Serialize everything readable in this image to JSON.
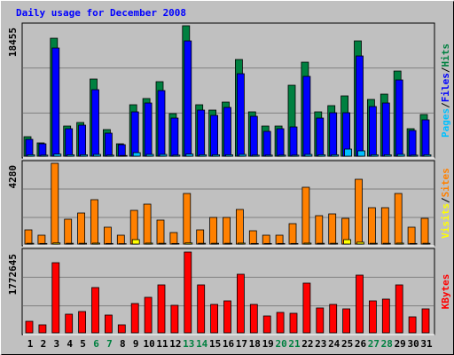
{
  "title": "Daily usage for December 2008",
  "chart_data": [
    {
      "type": "bar",
      "ylim": [
        0,
        18455
      ],
      "yticks": [
        18455
      ],
      "series": [
        {
          "name": "Hits",
          "color": "#008040",
          "values": [
            2761,
            1883,
            16692,
            4267,
            4769,
            10919,
            3765,
            1757,
            7279,
            8158,
            10542,
            6024,
            18455,
            7279,
            6526,
            7656,
            13680,
            6275,
            4267,
            4267,
            10040,
            13303,
            6275,
            7154,
            8534,
            16315,
            8032,
            8785,
            12048,
            3891,
            5899
          ]
        },
        {
          "name": "Files",
          "color": "#0000ff",
          "values": [
            2385,
            1757,
            15311,
            3891,
            4393,
            9413,
            3263,
            1632,
            6275,
            7530,
            9287,
            5397,
            16315,
            6526,
            5773,
            6903,
            11672,
            5648,
            3514,
            3891,
            4142,
            11295,
            5397,
            6150,
            6150,
            14182,
            7028,
            7530,
            10793,
            3640,
            5146
          ]
        },
        {
          "name": "Pages",
          "color": "#00c0ff",
          "values": [
            200,
            150,
            300,
            200,
            200,
            250,
            150,
            100,
            502,
            250,
            250,
            150,
            300,
            200,
            200,
            200,
            250,
            150,
            150,
            150,
            150,
            250,
            200,
            200,
            1004,
            753,
            200,
            200,
            250,
            150,
            200
          ]
        }
      ]
    },
    {
      "type": "bar",
      "ylim": [
        0,
        4280
      ],
      "yticks": [
        4280
      ],
      "series": [
        {
          "name": "Sites",
          "color": "#ff8000",
          "values": [
            752,
            470,
            4280,
            1317,
            1646,
            2352,
            894,
            470,
            1787,
            2116,
            1270,
            611,
            2681,
            752,
            1411,
            1411,
            1834,
            705,
            470,
            470,
            1082,
            3010,
            1505,
            1599,
            1364,
            3433,
            1928,
            1928,
            2681,
            894,
            1364
          ]
        },
        {
          "name": "Visits",
          "color": "#ffff00",
          "values": [
            40,
            30,
            60,
            40,
            40,
            50,
            30,
            20,
            235,
            50,
            40,
            30,
            60,
            40,
            40,
            40,
            50,
            30,
            30,
            30,
            30,
            50,
            40,
            40,
            235,
            100,
            40,
            40,
            50,
            30,
            40
          ]
        }
      ]
    },
    {
      "type": "bar",
      "ylim": [
        0,
        1772645
      ],
      "yticks": [
        1772645
      ],
      "categories": [
        "1",
        "2",
        "3",
        "4",
        "5",
        "6",
        "7",
        "8",
        "9",
        "10",
        "11",
        "12",
        "13",
        "14",
        "15",
        "16",
        "17",
        "18",
        "19",
        "20",
        "21",
        "22",
        "23",
        "24",
        "25",
        "26",
        "27",
        "28",
        "29",
        "30",
        "31"
      ],
      "category_colors": [
        "#000000",
        "#000000",
        "#000000",
        "#000000",
        "#000000",
        "#008040",
        "#008040",
        "#000000",
        "#000000",
        "#000000",
        "#000000",
        "#000000",
        "#008040",
        "#008040",
        "#000000",
        "#000000",
        "#000000",
        "#000000",
        "#000000",
        "#008040",
        "#008040",
        "#000000",
        "#000000",
        "#000000",
        "#000000",
        "#000000",
        "#008040",
        "#008040",
        "#000000",
        "#000000",
        "#000000"
      ],
      "series": [
        {
          "name": "KBytes",
          "color": "#ff0000",
          "values": [
            253240,
            175320,
            1538920,
            409080,
            467520,
            993480,
            389600,
            175320,
            642840,
            779200,
            1051920,
            603880,
            1772645,
            1051920,
            623360,
            701280,
            1285680,
            623360,
            370120,
            448040,
            428560,
            1090880,
            545440,
            623360,
            525960,
            1266200,
            701280,
            740240,
            1051920,
            350640,
            525960
          ]
        }
      ]
    }
  ]
}
